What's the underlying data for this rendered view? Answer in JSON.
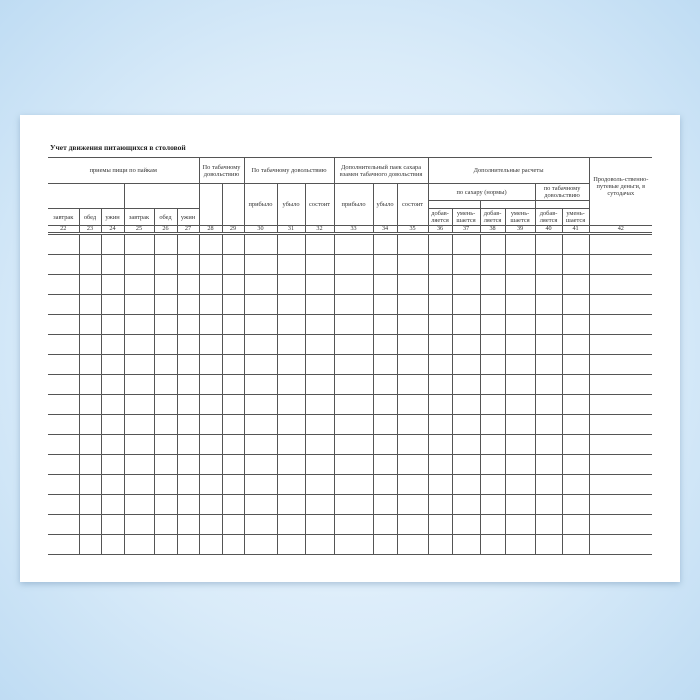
{
  "title": "Учет движения питающихся в столовой",
  "headers": {
    "meals": "приемы пищи по пайкам",
    "tobacco1": "По табачному довольствию",
    "tobacco2": "По табачному довольствию",
    "sugar_ration": "Дополнительный паек сахара взамен табачного довольствия",
    "extra": "Дополнительные расчеты",
    "by_sugar": "по сахару (нормы)",
    "by_tobacco": "по табачному довольствию",
    "travel": "Продоволь-ственно-путевые деньги, в сутодачах",
    "arrived": "прибыло",
    "left": "убыло",
    "present": "состоит",
    "arrived2": "прибыло",
    "left2": "убыло",
    "present2": "состоит",
    "meal_cols": [
      "завтрак",
      "обед",
      "ужин",
      "завтрак",
      "обед",
      "ужин"
    ],
    "adjust_cols": [
      "добав-ляется",
      "умень-шается",
      "добав-ляется",
      "умень-шается",
      "добав-ляется",
      "умень-шается"
    ]
  },
  "column_numbers": [
    "22",
    "23",
    "24",
    "25",
    "26",
    "27",
    "28",
    "29",
    "30",
    "31",
    "32",
    "33",
    "34",
    "35",
    "36",
    "37",
    "38",
    "39",
    "40",
    "41",
    "42"
  ],
  "data_rows": 16
}
